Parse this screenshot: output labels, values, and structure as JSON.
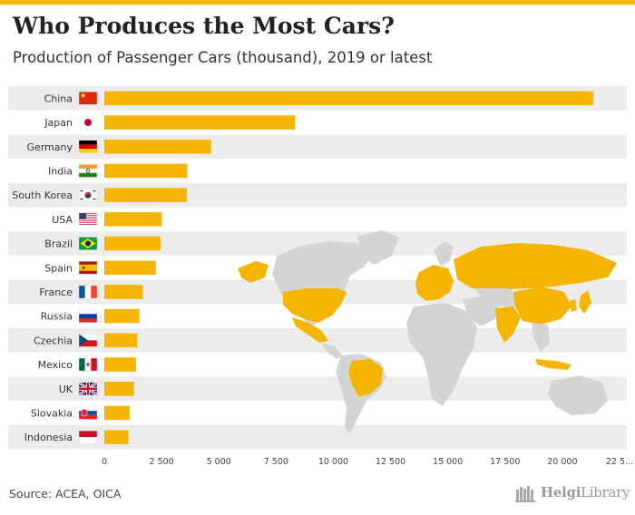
{
  "title": "Who Produces the Most Cars?",
  "subtitle": "Production of Passenger Cars (thousand), 2019 or latest",
  "source": "Source: ACEA, OICA",
  "logo": {
    "text_a": "Helgi",
    "text_b": "Library",
    "icon": "bookshelf-icon"
  },
  "colors": {
    "accent": "#f5b400",
    "row_band": "#ececec",
    "map_land": "#d4d4d4"
  },
  "chart_data": {
    "type": "bar",
    "orientation": "horizontal",
    "categories": [
      "China",
      "Japan",
      "Germany",
      "India",
      "South Korea",
      "USA",
      "Brazil",
      "Spain",
      "France",
      "Russia",
      "Czechia",
      "Mexico",
      "UK",
      "Slovakia",
      "Indonesia"
    ],
    "flags": [
      "flag-china-icon",
      "flag-japan-icon",
      "flag-germany-icon",
      "flag-india-icon",
      "flag-south-korea-icon",
      "flag-usa-icon",
      "flag-brazil-icon",
      "flag-spain-icon",
      "flag-france-icon",
      "flag-russia-icon",
      "flag-czechia-icon",
      "flag-mexico-icon",
      "flag-uk-icon",
      "flag-slovakia-icon",
      "flag-indonesia-icon"
    ],
    "values": [
      21360,
      8330,
      4660,
      3620,
      3610,
      2510,
      2450,
      2250,
      1680,
      1530,
      1430,
      1380,
      1300,
      1100,
      1050
    ],
    "xlim": [
      0,
      22500
    ],
    "ticks": [
      0,
      2500,
      5000,
      7500,
      10000,
      12500,
      15000,
      17500,
      20000,
      22500
    ],
    "tick_labels": [
      "0",
      "2 500",
      "5 000",
      "7 500",
      "10 000",
      "12 500",
      "15 000",
      "17 500",
      "20 000",
      "22 5..."
    ],
    "bar_color": "#f5b400",
    "grid": false,
    "background_map": "world-map-highlighting-producer-countries"
  }
}
